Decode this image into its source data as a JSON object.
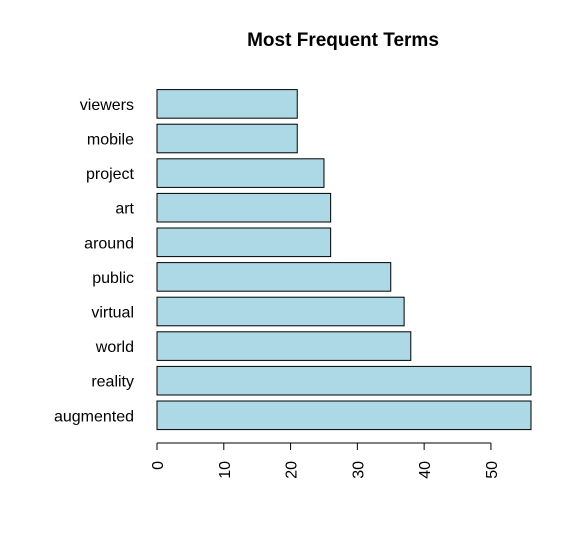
{
  "chart_data": {
    "type": "bar",
    "orientation": "horizontal",
    "title": "Most Frequent Terms",
    "xlabel": "",
    "ylabel": "",
    "categories": [
      "augmented",
      "reality",
      "world",
      "virtual",
      "public",
      "around",
      "art",
      "project",
      "mobile",
      "viewers"
    ],
    "values": [
      56,
      56,
      38,
      37,
      35,
      26,
      26,
      25,
      21,
      21
    ],
    "xlim": [
      0,
      56
    ],
    "ticks": [
      0,
      10,
      20,
      30,
      40,
      50
    ],
    "tick_labels": [
      "0",
      "10",
      "20",
      "30",
      "40",
      "50"
    ],
    "bar_color": "#add8e6",
    "grid": false,
    "legend": "none"
  }
}
